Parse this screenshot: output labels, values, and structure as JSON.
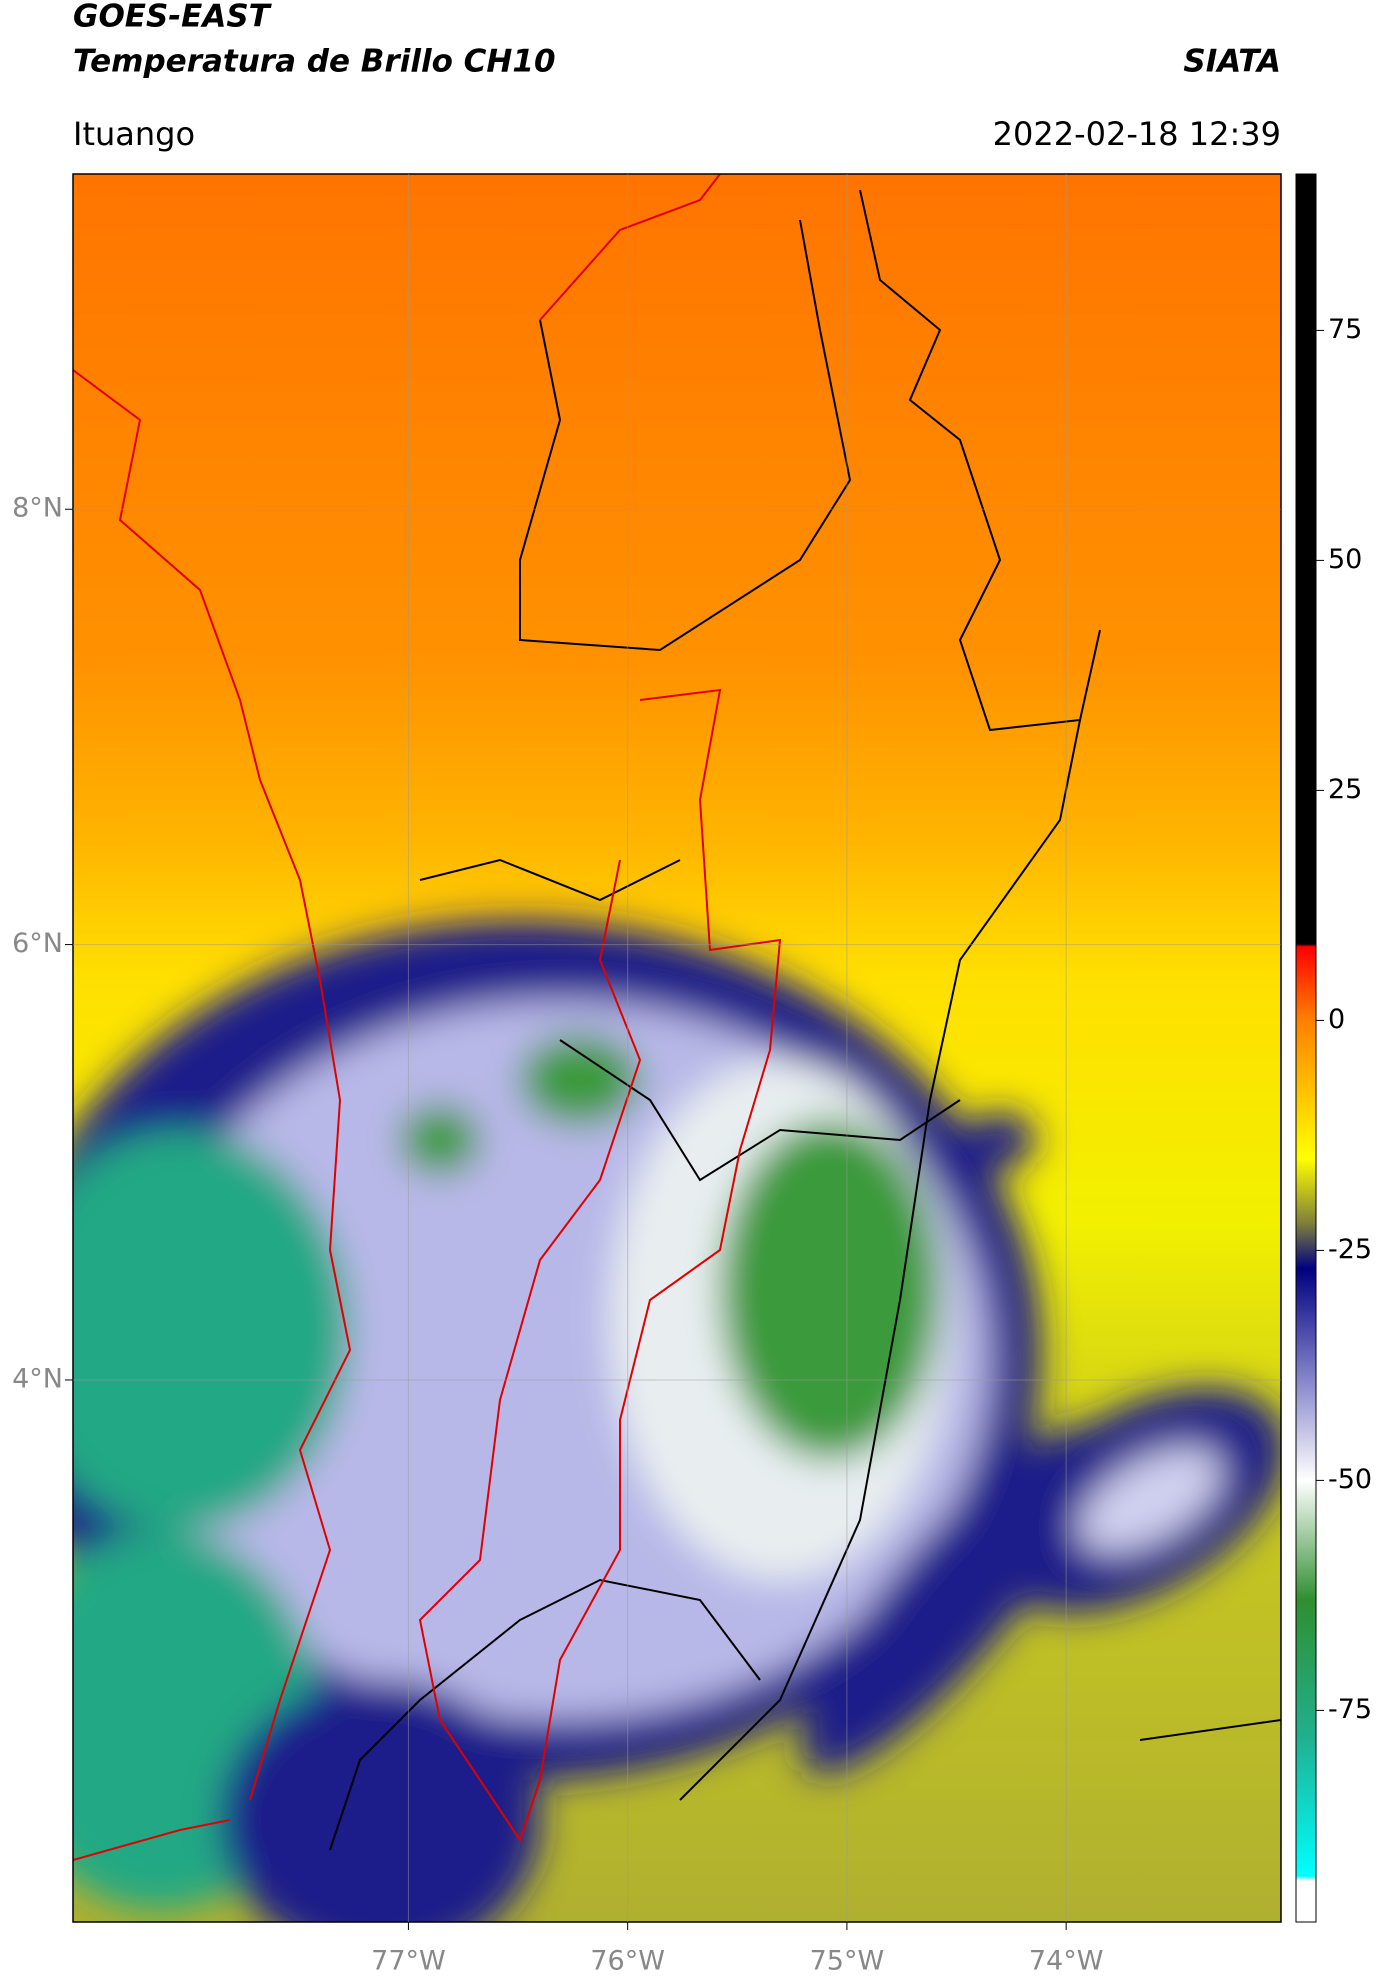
{
  "header": {
    "satellite": "GOES-EAST",
    "product": "Temperatura de Brillo CH10",
    "source": "SIATA",
    "region": "Ituango",
    "datetime": "2022-02-18 12:39"
  },
  "map": {
    "latlim": [
      1.51,
      9.54
    ],
    "lonlim": [
      -78.53,
      -73.02
    ],
    "grid": true,
    "lat_ticks": [
      {
        "value": 8,
        "label": "8°N"
      },
      {
        "value": 6,
        "label": "6°N"
      },
      {
        "value": 4,
        "label": "4°N"
      }
    ],
    "lon_ticks": [
      {
        "value": -77,
        "label": "77°W"
      },
      {
        "value": -76,
        "label": "76°W"
      },
      {
        "value": -75,
        "label": "75°W"
      },
      {
        "value": -74,
        "label": "74°W"
      }
    ]
  },
  "colorbar": {
    "lim": [
      -98,
      92
    ],
    "ticks": [
      75,
      50,
      25,
      0,
      -25,
      -50,
      -75
    ],
    "colormap": [
      {
        "value": 92,
        "color": "#000000"
      },
      {
        "value": 8.3,
        "color": "#000000"
      },
      {
        "value": 8,
        "color": "#ff0000"
      },
      {
        "value": 0,
        "color": "#ff8000"
      },
      {
        "value": -15,
        "color": "#ffff00"
      },
      {
        "value": -22,
        "color": "#80803a"
      },
      {
        "value": -27,
        "color": "#000080"
      },
      {
        "value": -40,
        "color": "#9090d0"
      },
      {
        "value": -50,
        "color": "#ffffff"
      },
      {
        "value": -63,
        "color": "#2f8f2f"
      },
      {
        "value": -78,
        "color": "#20b090"
      },
      {
        "value": -93,
        "color": "#00ffff"
      },
      {
        "value": -93.5,
        "color": "#ffffff"
      },
      {
        "value": -98,
        "color": "#ffffff"
      }
    ]
  }
}
